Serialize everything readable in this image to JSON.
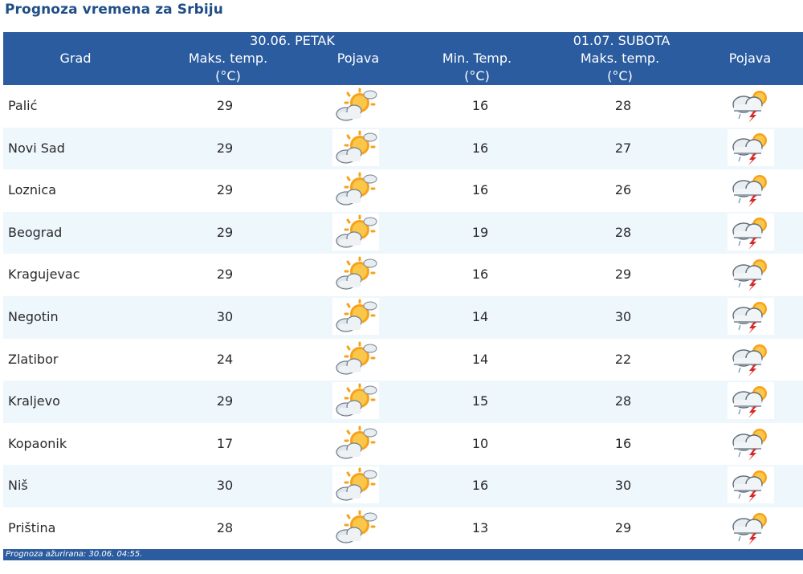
{
  "page_title": "Prognoza vremena za Srbiju",
  "header": {
    "grad": "Grad",
    "day1": {
      "date": "30.06. PETAK",
      "max_label": "Maks. temp.",
      "unit": "(°C)",
      "pojava": "Pojava"
    },
    "day2": {
      "date": "01.07. SUBOTA",
      "min_label": "Min. Temp.",
      "min_unit": "(°C)",
      "max_label": "Maks. temp.",
      "max_unit": "(°C)",
      "pojava": "Pojava"
    }
  },
  "icons": {
    "day1": "partly-cloudy-sun-icon",
    "day2": "thunderstorm-icon"
  },
  "colors": {
    "header_bg": "#2b5c9f",
    "row_alt": "#eef7fc",
    "title": "#1f4e87"
  },
  "rows": [
    {
      "city": "Palić",
      "max1": "29",
      "min2": "16",
      "max2": "28"
    },
    {
      "city": "Novi Sad",
      "max1": "29",
      "min2": "16",
      "max2": "27"
    },
    {
      "city": "Loznica",
      "max1": "29",
      "min2": "16",
      "max2": "26"
    },
    {
      "city": "Beograd",
      "max1": "29",
      "min2": "19",
      "max2": "28"
    },
    {
      "city": "Kragujevac",
      "max1": "29",
      "min2": "16",
      "max2": "29"
    },
    {
      "city": "Negotin",
      "max1": "30",
      "min2": "14",
      "max2": "30"
    },
    {
      "city": "Zlatibor",
      "max1": "24",
      "min2": "14",
      "max2": "22"
    },
    {
      "city": "Kraljevo",
      "max1": "29",
      "min2": "15",
      "max2": "28"
    },
    {
      "city": "Kopaonik",
      "max1": "17",
      "min2": "10",
      "max2": "16"
    },
    {
      "city": "Niš",
      "max1": "30",
      "min2": "16",
      "max2": "30"
    },
    {
      "city": "Priština",
      "max1": "28",
      "min2": "13",
      "max2": "29"
    }
  ],
  "footer": {
    "text": "Prognoza ažurirana:  30.06. 04:55."
  }
}
